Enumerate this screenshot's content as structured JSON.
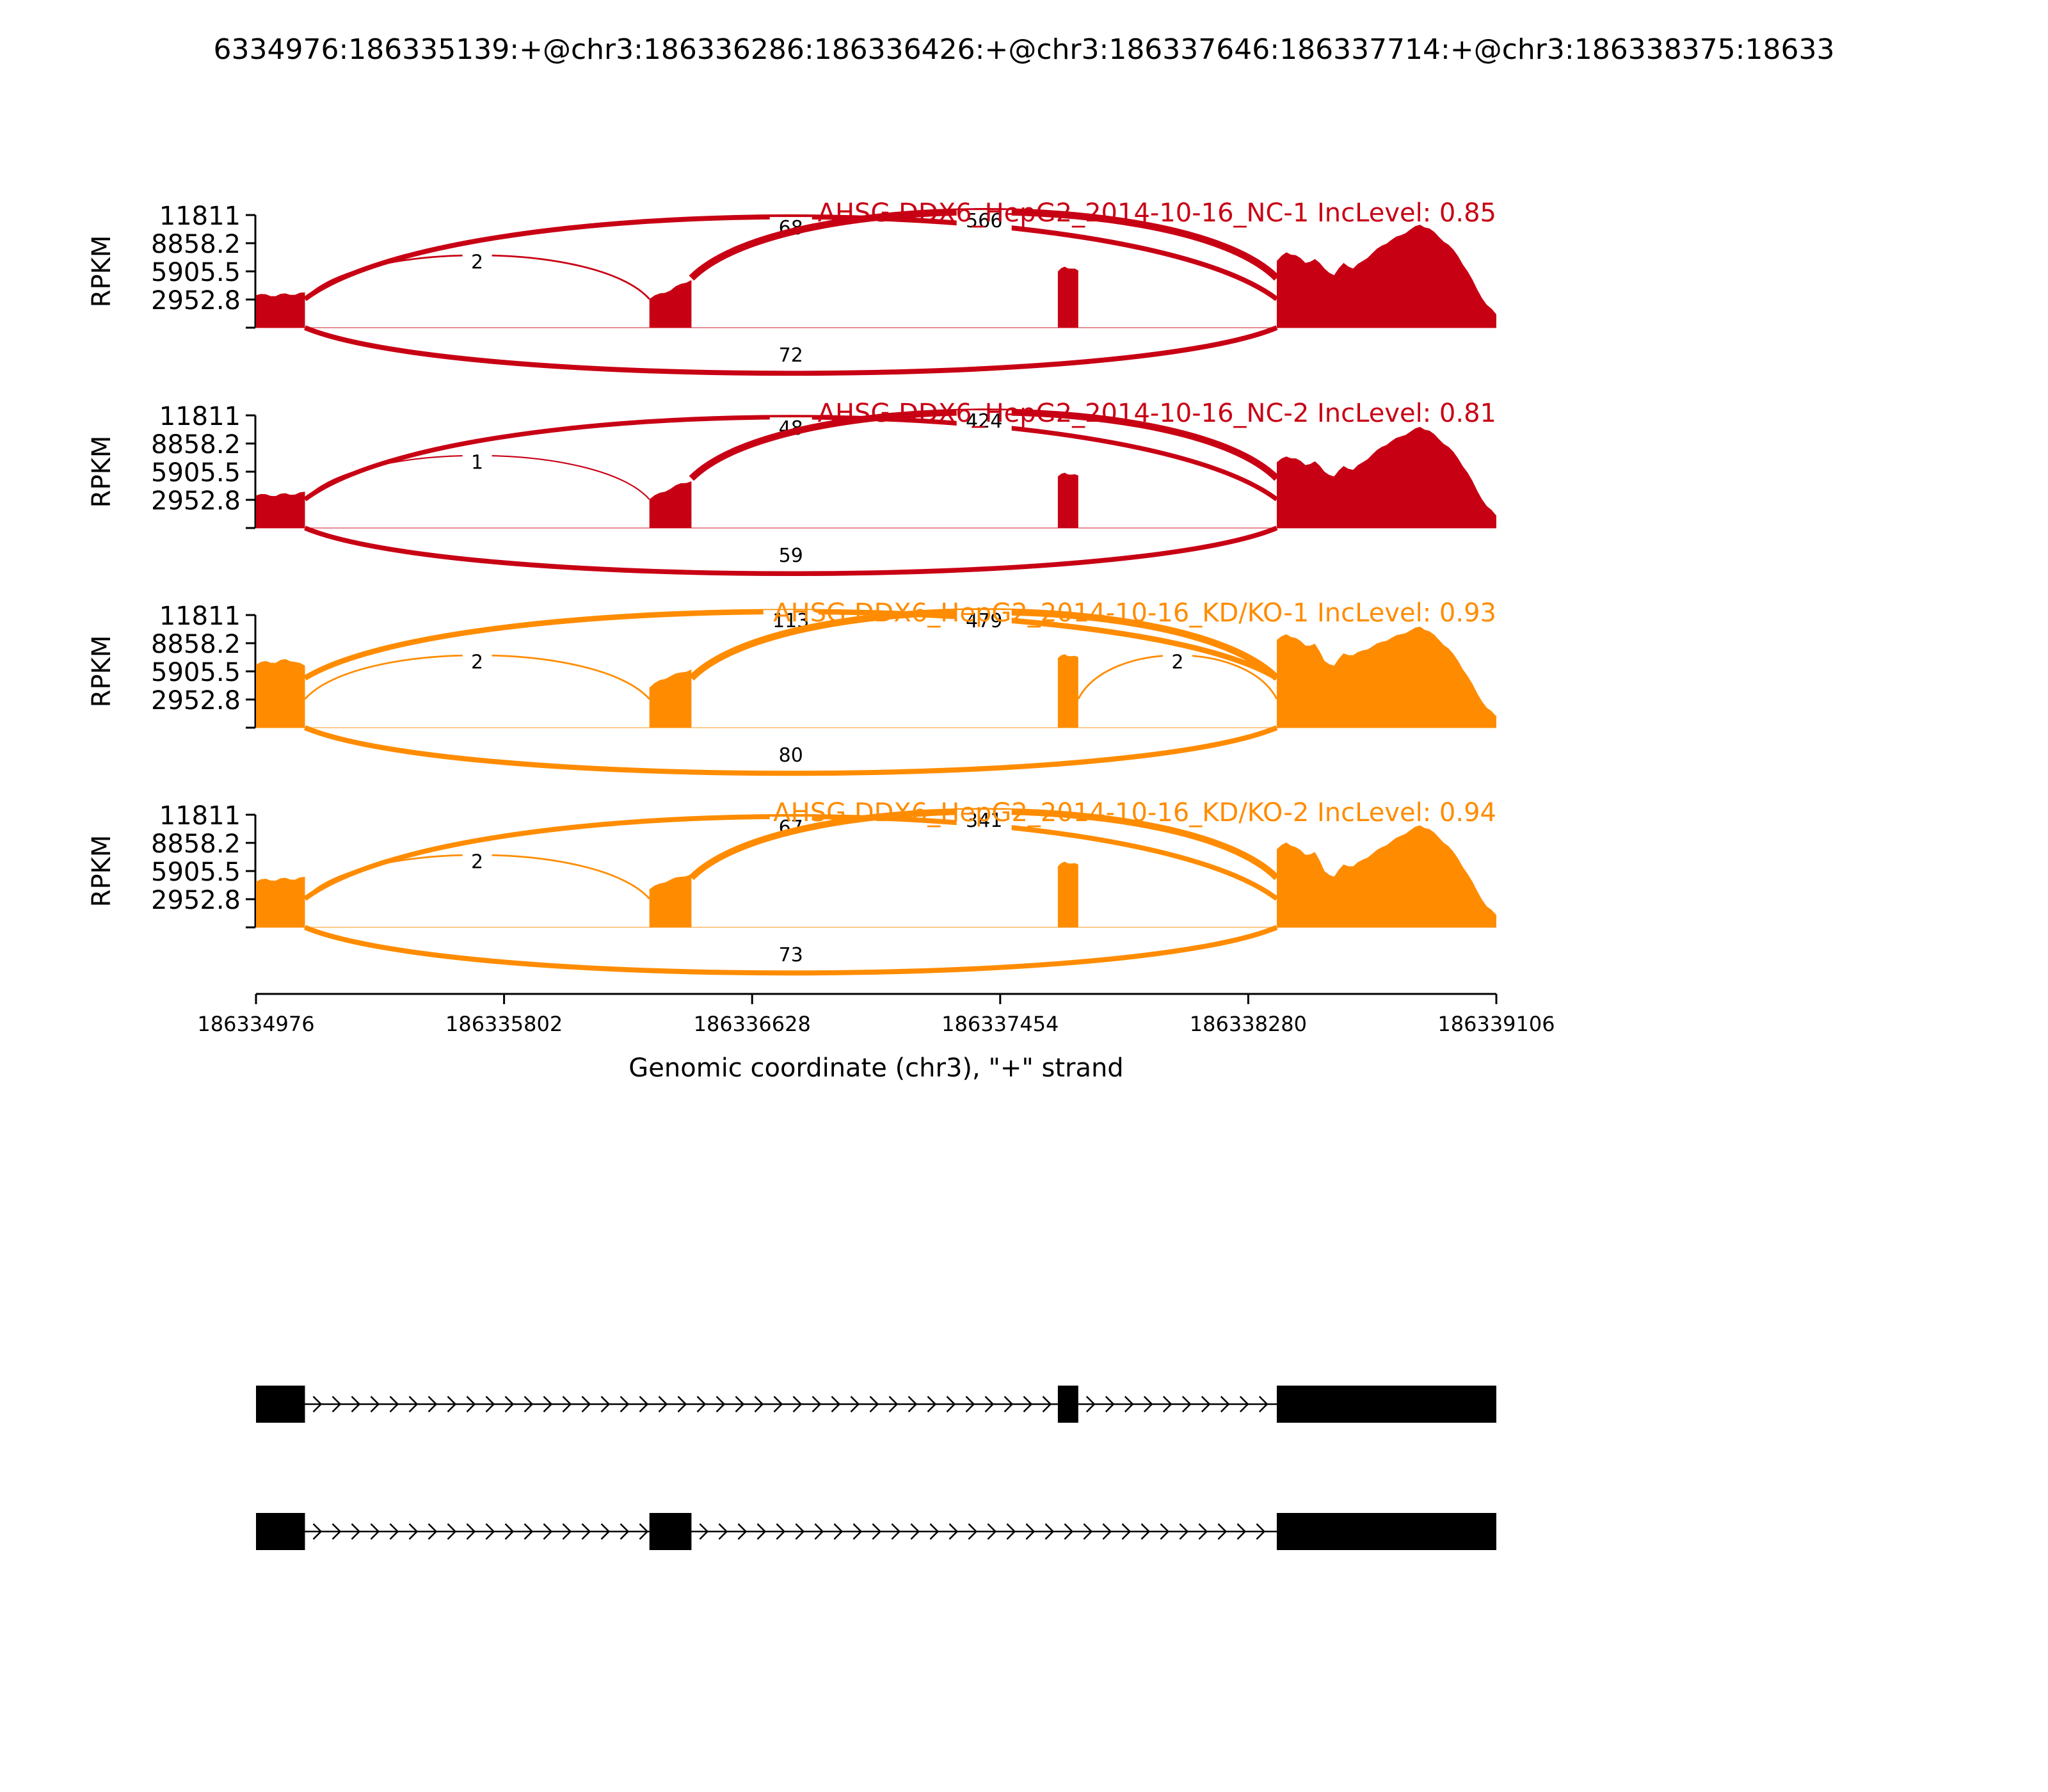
{
  "title": "6334976:186335139:+@chr3:186336286:186336426:+@chr3:186337646:186337714:+@chr3:186338375:18633",
  "colors": {
    "nc": "#c80014",
    "kd": "#ff8c00",
    "axis": "#000000"
  },
  "chart_data": {
    "type": "area",
    "ylabel": "RPKM",
    "xlabel": "Genomic coordinate (chr3), \"+\" strand",
    "xlim": [
      186334976,
      186339106
    ],
    "ylim": [
      0,
      11811
    ],
    "yticks": [
      "11811",
      "8858.2",
      "5905.5",
      "2952.8"
    ],
    "xticks": [
      {
        "value": 186334976,
        "label": "186334976"
      },
      {
        "value": 186335802,
        "label": "186335802"
      },
      {
        "value": 186336628,
        "label": "186336628"
      },
      {
        "value": 186337454,
        "label": "186337454"
      },
      {
        "value": 186338280,
        "label": "186338280"
      },
      {
        "value": 186339106,
        "label": "186339106"
      }
    ],
    "exons": [
      [
        186334976,
        186335139
      ],
      [
        186336286,
        186336426
      ],
      [
        186337646,
        186337714
      ],
      [
        186338375,
        186339106
      ]
    ],
    "panels": [
      {
        "name": "AHSG DDX6_HepG2_2014-10-16_NC-1 IncLevel: 0.85",
        "color": "nc",
        "coverage": [
          {
            "exon": 0,
            "levels": [
              3400,
              3500,
              3300,
              3600,
              3450,
              3700
            ]
          },
          {
            "exon": 1,
            "levels": [
              3000,
              3600,
              3900,
              4600,
              5000
            ]
          },
          {
            "exon": 2,
            "levels": [
              5900,
              6400,
              6200,
              6000
            ]
          },
          {
            "exon": 3,
            "levels": [
              7000,
              7900,
              7600,
              6800,
              7200,
              6200,
              5500,
              6800,
              6200,
              7000,
              7800,
              8600,
              9200,
              9700,
              10300,
              10800,
              10400,
              9500,
              8700,
              7500,
              5900,
              4000,
              2400,
              1400
            ]
          }
        ],
        "junctions": [
          {
            "from": 186335139,
            "to": 186336286,
            "count": 2,
            "side": "above"
          },
          {
            "from": 186335139,
            "to": 186338375,
            "count": 68,
            "side": "above"
          },
          {
            "from": 186336426,
            "to": 186338375,
            "count": 566,
            "side": "above"
          },
          {
            "from": 186335139,
            "to": 186338375,
            "count": 72,
            "side": "below"
          }
        ]
      },
      {
        "name": "AHSG DDX6_HepG2_2014-10-16_NC-2 IncLevel: 0.81",
        "color": "nc",
        "coverage": [
          {
            "exon": 0,
            "levels": [
              3400,
              3550,
              3350,
              3650,
              3500,
              3800
            ]
          },
          {
            "exon": 1,
            "levels": [
              3000,
              3700,
              4100,
              4700,
              4900
            ]
          },
          {
            "exon": 2,
            "levels": [
              5400,
              5800,
              5600,
              5500
            ]
          },
          {
            "exon": 3,
            "levels": [
              6900,
              7500,
              7300,
              6600,
              7000,
              5900,
              5400,
              6500,
              6100,
              6900,
              7700,
              8500,
              9100,
              9600,
              10100,
              10600,
              10200,
              9300,
              8500,
              7300,
              5800,
              3900,
              2300,
              1300
            ]
          }
        ],
        "junctions": [
          {
            "from": 186335139,
            "to": 186336286,
            "count": 1,
            "side": "above"
          },
          {
            "from": 186335139,
            "to": 186338375,
            "count": 48,
            "side": "above"
          },
          {
            "from": 186336426,
            "to": 186338375,
            "count": 424,
            "side": "above"
          },
          {
            "from": 186335139,
            "to": 186338375,
            "count": 59,
            "side": "below"
          }
        ]
      },
      {
        "name": "AHSG DDX6_HepG2_2014-10-16_KD/KO-1 IncLevel: 0.93",
        "color": "kd",
        "coverage": [
          {
            "exon": 0,
            "levels": [
              6600,
              7000,
              6800,
              7200,
              6900,
              6500
            ]
          },
          {
            "exon": 1,
            "levels": [
              4200,
              5000,
              5400,
              5800,
              6100
            ]
          },
          {
            "exon": 2,
            "levels": [
              7300,
              7700,
              7500,
              7400
            ]
          },
          {
            "exon": 3,
            "levels": [
              9200,
              9800,
              9400,
              8600,
              8800,
              7000,
              6500,
              7800,
              7600,
              8100,
              8500,
              9000,
              9400,
              9800,
              10200,
              10600,
              10100,
              9200,
              8300,
              7000,
              5400,
              3600,
              2100,
              1200
            ]
          }
        ],
        "junctions": [
          {
            "from": 186335139,
            "to": 186336286,
            "count": 2,
            "side": "above"
          },
          {
            "from": 186335139,
            "to": 186338375,
            "count": 113,
            "side": "above"
          },
          {
            "from": 186336426,
            "to": 186338375,
            "count": 479,
            "side": "above"
          },
          {
            "from": 186337714,
            "to": 186338375,
            "count": 2,
            "side": "above"
          },
          {
            "from": 186335139,
            "to": 186338375,
            "count": 80,
            "side": "below"
          }
        ]
      },
      {
        "name": "AHSG DDX6_HepG2_2014-10-16_KD/KO-2 IncLevel: 0.94",
        "color": "kd",
        "coverage": [
          {
            "exon": 0,
            "levels": [
              4800,
              5100,
              4900,
              5200,
              5000,
              5300
            ]
          },
          {
            "exon": 1,
            "levels": [
              4000,
              4600,
              5000,
              5300,
              5600
            ]
          },
          {
            "exon": 2,
            "levels": [
              6400,
              6900,
              6700,
              6600
            ]
          },
          {
            "exon": 3,
            "levels": [
              8200,
              8900,
              8400,
              7600,
              7900,
              5900,
              5300,
              6600,
              6400,
              7100,
              7700,
              8400,
              9000,
              9600,
              10200,
              10700,
              10300,
              9400,
              8500,
              7200,
              5600,
              3800,
              2200,
              1300
            ]
          }
        ],
        "junctions": [
          {
            "from": 186335139,
            "to": 186336286,
            "count": 2,
            "side": "above"
          },
          {
            "from": 186335139,
            "to": 186338375,
            "count": 67,
            "side": "above"
          },
          {
            "from": 186336426,
            "to": 186338375,
            "count": 341,
            "side": "above"
          },
          {
            "from": 186335139,
            "to": 186338375,
            "count": 73,
            "side": "below"
          }
        ]
      }
    ],
    "transcripts": [
      {
        "exons": [
          [
            186334976,
            186335139
          ],
          [
            186337646,
            186337714
          ],
          [
            186338375,
            186339106
          ]
        ]
      },
      {
        "exons": [
          [
            186334976,
            186335139
          ],
          [
            186336286,
            186336426
          ],
          [
            186338375,
            186339106
          ]
        ]
      }
    ]
  }
}
